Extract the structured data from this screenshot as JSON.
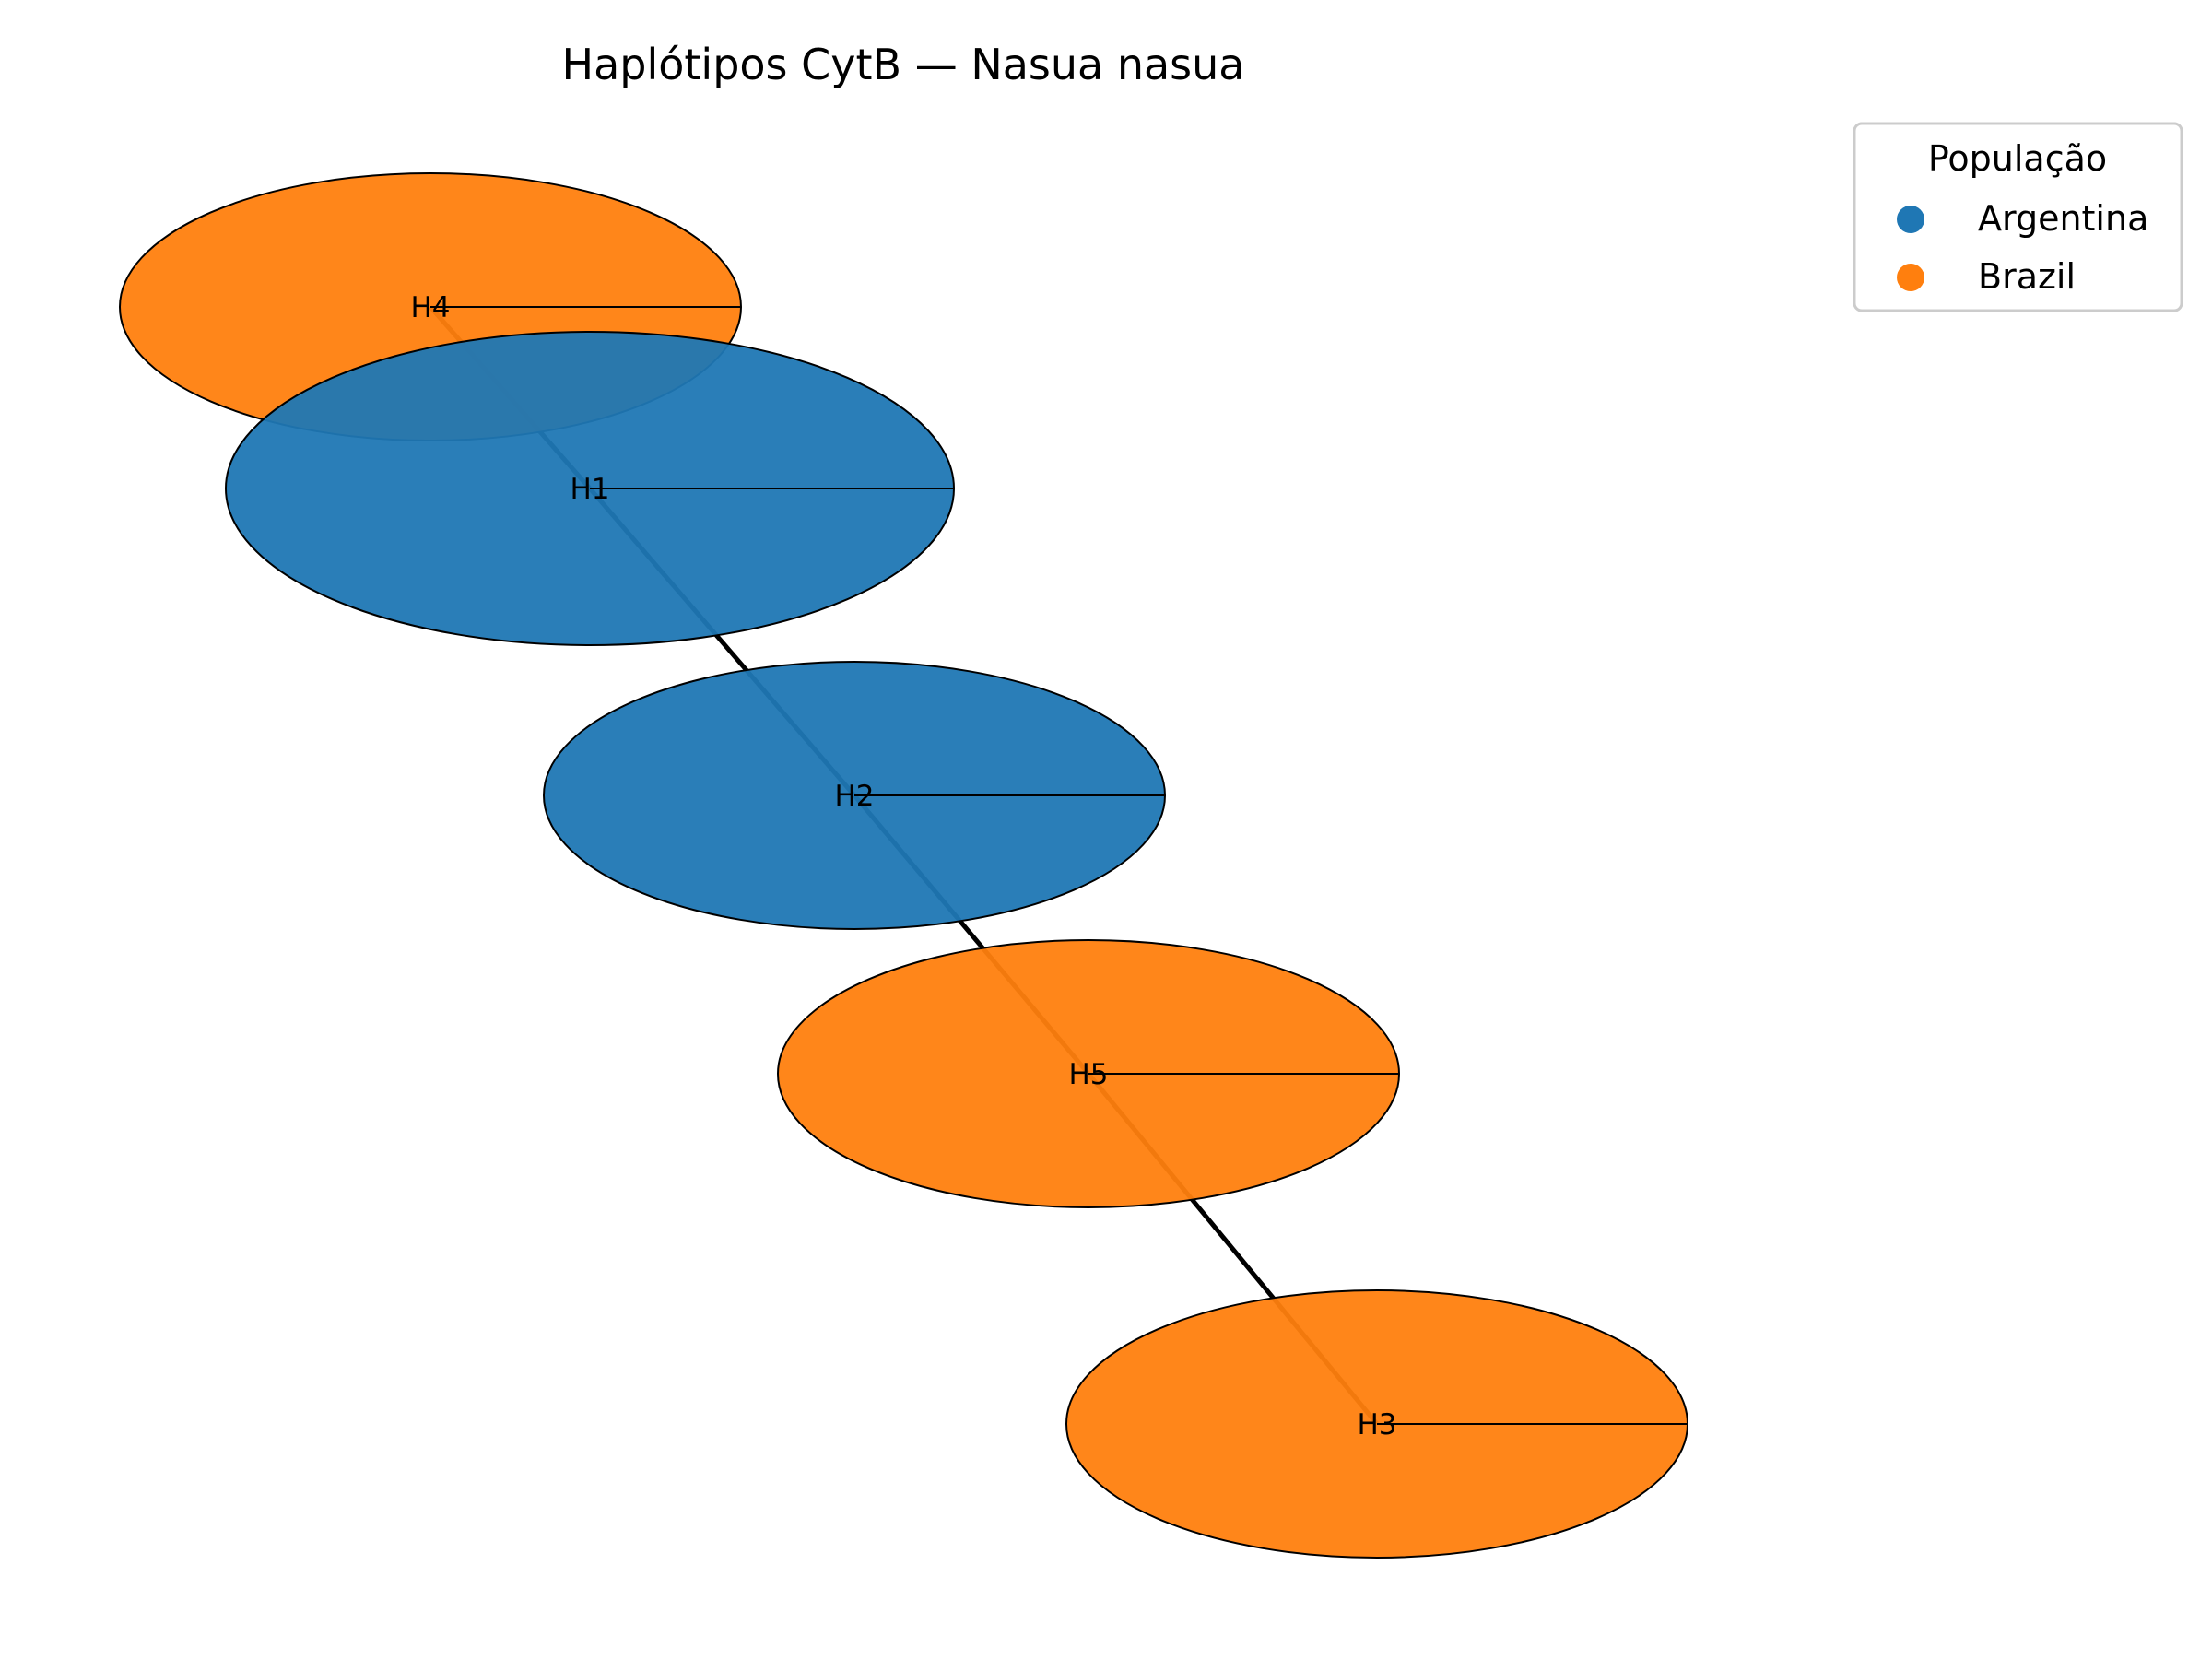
{
  "title": "Haplótipos CytB — Nasua nasua",
  "legend": {
    "title": "População",
    "items": [
      {
        "label": "Argentina",
        "color": "#1f77b4"
      },
      {
        "label": "Brazil",
        "color": "#ff7f0e"
      }
    ]
  },
  "nodes": [
    {
      "id": "H4",
      "label": "H4",
      "population": "Brazil"
    },
    {
      "id": "H1",
      "label": "H1",
      "population": "Argentina"
    },
    {
      "id": "H2",
      "label": "H2",
      "population": "Argentina"
    },
    {
      "id": "H5",
      "label": "H5",
      "population": "Brazil"
    },
    {
      "id": "H3",
      "label": "H3",
      "population": "Brazil"
    }
  ],
  "edges": [
    {
      "from": "H4",
      "to": "H1"
    },
    {
      "from": "H1",
      "to": "H2"
    },
    {
      "from": "H2",
      "to": "H5"
    },
    {
      "from": "H5",
      "to": "H3"
    }
  ]
}
